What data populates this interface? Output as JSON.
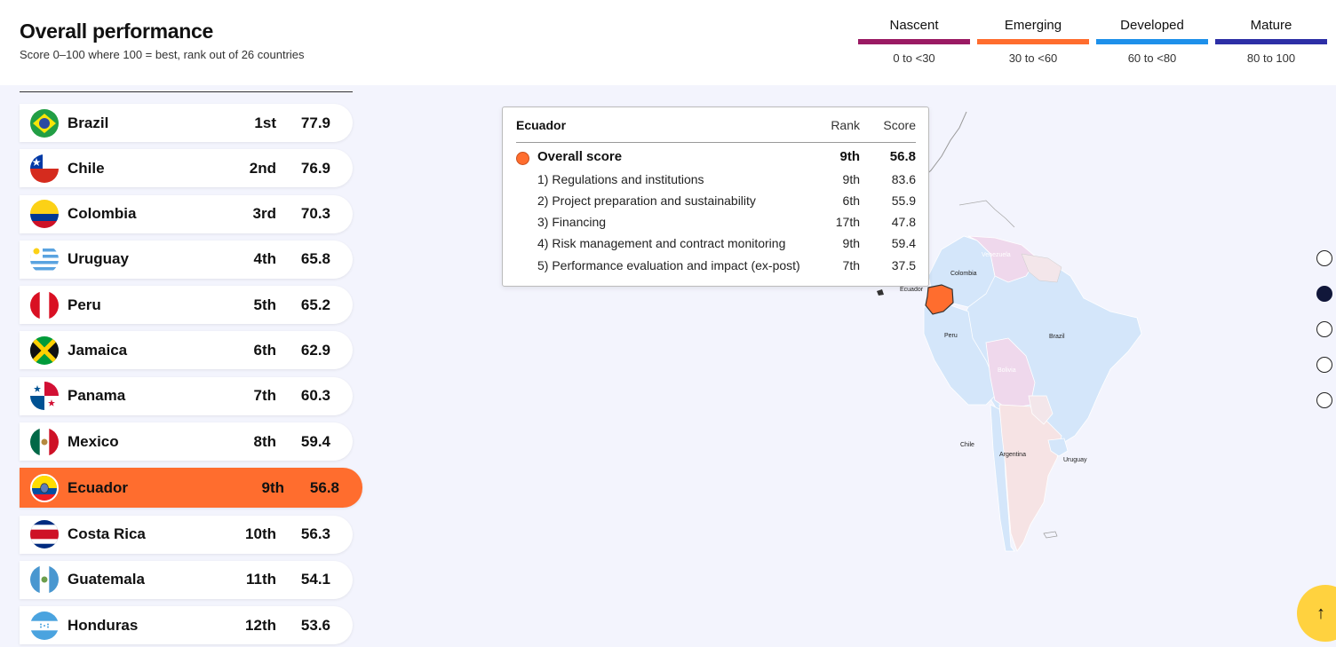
{
  "header": {
    "title": "Overall performance",
    "subtitle": "Score 0–100 where 100 = best, rank out of 26 countries"
  },
  "legend": [
    {
      "name": "Nascent",
      "range": "0 to <30",
      "color": "#9a1a63"
    },
    {
      "name": "Emerging",
      "range": "30 to <60",
      "color": "#ff6d2e"
    },
    {
      "name": "Developed",
      "range": "60 to <80",
      "color": "#1e90ea"
    },
    {
      "name": "Mature",
      "range": "80 to 100",
      "color": "#2d2fa6"
    }
  ],
  "countries": [
    {
      "name": "Brazil",
      "rank": "1st",
      "score": "77.9",
      "flag": "brazil-flag-icon"
    },
    {
      "name": "Chile",
      "rank": "2nd",
      "score": "76.9",
      "flag": "chile-flag-icon"
    },
    {
      "name": "Colombia",
      "rank": "3rd",
      "score": "70.3",
      "flag": "colombia-flag-icon"
    },
    {
      "name": "Uruguay",
      "rank": "4th",
      "score": "65.8",
      "flag": "uruguay-flag-icon"
    },
    {
      "name": "Peru",
      "rank": "5th",
      "score": "65.2",
      "flag": "peru-flag-icon"
    },
    {
      "name": "Jamaica",
      "rank": "6th",
      "score": "62.9",
      "flag": "jamaica-flag-icon"
    },
    {
      "name": "Panama",
      "rank": "7th",
      "score": "60.3",
      "flag": "panama-flag-icon"
    },
    {
      "name": "Mexico",
      "rank": "8th",
      "score": "59.4",
      "flag": "mexico-flag-icon"
    },
    {
      "name": "Ecuador",
      "rank": "9th",
      "score": "56.8",
      "flag": "ecuador-flag-icon"
    },
    {
      "name": "Costa Rica",
      "rank": "10th",
      "score": "56.3",
      "flag": "costa-rica-flag-icon"
    },
    {
      "name": "Guatemala",
      "rank": "11th",
      "score": "54.1",
      "flag": "guatemala-flag-icon"
    },
    {
      "name": "Honduras",
      "rank": "12th",
      "score": "53.6",
      "flag": "honduras-flag-icon"
    }
  ],
  "tooltip": {
    "country": "Ecuador",
    "rank_header": "Rank",
    "score_header": "Score",
    "overall": {
      "label": "Overall score",
      "rank": "9th",
      "score": "56.8"
    },
    "rows": [
      {
        "label": "1) Regulations and institutions",
        "rank": "9th",
        "score": "83.6"
      },
      {
        "label": "2) Project preparation and sustainability",
        "rank": "6th",
        "score": "55.9"
      },
      {
        "label": "3) Financing",
        "rank": "17th",
        "score": "47.8"
      },
      {
        "label": "4) Risk management and contract monitoring",
        "rank": "9th",
        "score": "59.4"
      },
      {
        "label": "5) Performance evaluation and impact (ex-post)",
        "rank": "7th",
        "score": "37.5"
      }
    ]
  },
  "map_labels": {
    "venezuela": "Venezuela",
    "colombia": "Colombia",
    "ecuador": "Ecuador",
    "peru": "Peru",
    "brazil": "Brazil",
    "bolivia": "Bolivia",
    "chile": "Chile",
    "argentina": "Argentina",
    "uruguay": "Uruguay"
  },
  "scroll_top_icon": "arrow-up-icon"
}
